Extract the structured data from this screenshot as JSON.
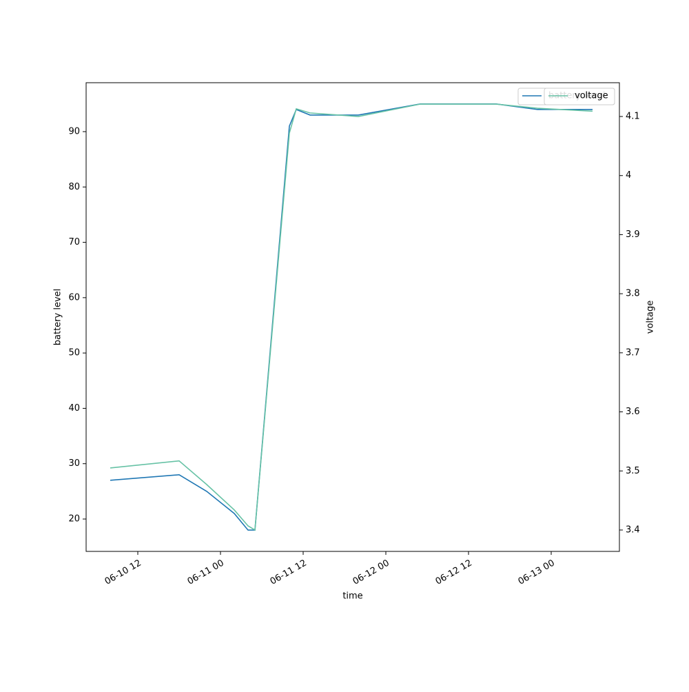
{
  "chart_data": {
    "type": "line",
    "x_label": "time",
    "y_label": "battery level",
    "y2_label": "voltage",
    "x": [
      "06-10 08:00",
      "06-10 18:00",
      "06-10 22:00",
      "06-11 02:00",
      "06-11 04:00",
      "06-11 05:00",
      "06-11 10:00",
      "06-11 11:00",
      "06-11 13:00",
      "06-11 20:00",
      "06-12 05:00",
      "06-12 16:00",
      "06-12 22:00",
      "06-13 06:00"
    ],
    "series": [
      {
        "name": "battery level",
        "color": "#1f77b4",
        "axis": "y",
        "values": [
          27,
          28,
          25,
          21,
          18,
          18,
          91,
          94,
          93,
          93,
          95,
          95,
          94,
          94
        ]
      },
      {
        "name": "voltage",
        "color": "#66c2a5",
        "axis": "y2",
        "values": [
          3.505,
          3.517,
          3.477,
          3.434,
          3.407,
          3.4,
          4.072,
          4.113,
          4.106,
          4.1,
          4.121,
          4.121,
          4.114,
          4.109
        ]
      }
    ],
    "xlim": [
      "06-10 04:30",
      "06-13 09:54"
    ],
    "xticks": [
      {
        "value": "06-10 12:00",
        "label": "06-10 12"
      },
      {
        "value": "06-11 00:00",
        "label": "06-11 00"
      },
      {
        "value": "06-11 12:00",
        "label": "06-11 12"
      },
      {
        "value": "06-12 00:00",
        "label": "06-12 00"
      },
      {
        "value": "06-12 12:00",
        "label": "06-12 12"
      },
      {
        "value": "06-13 00:00",
        "label": "06-13 00"
      }
    ],
    "ylim": [
      14.15,
      98.84
    ],
    "yticks": [
      20,
      30,
      40,
      50,
      60,
      70,
      80,
      90
    ],
    "y2lim": [
      3.3638,
      4.1572
    ],
    "y2ticks": [
      3.4,
      3.5,
      3.6,
      3.7,
      3.8,
      3.9,
      4.0,
      4.1
    ],
    "legend": "upper right",
    "grid": false
  }
}
